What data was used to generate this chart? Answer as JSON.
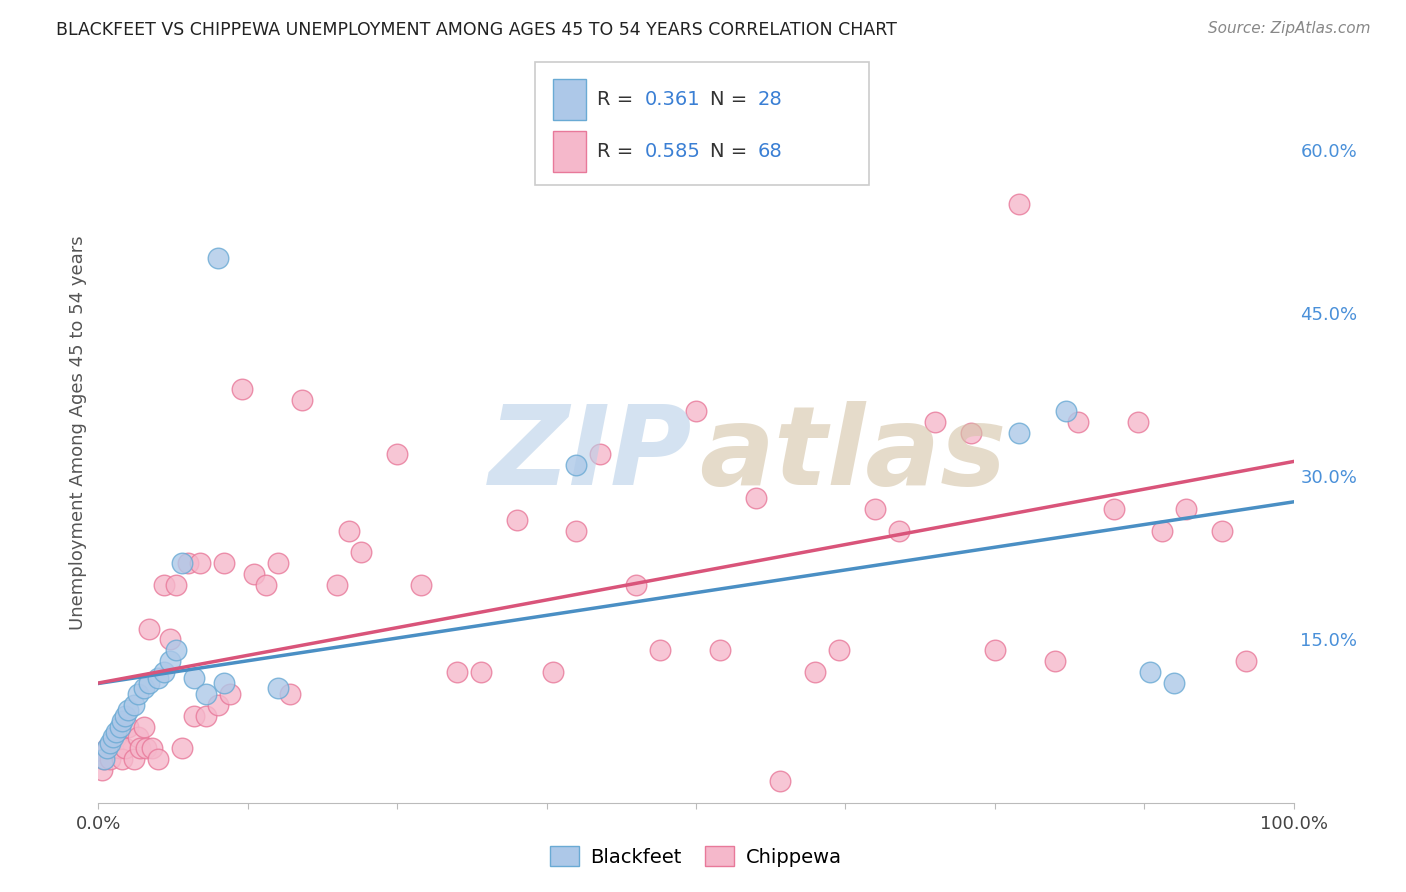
{
  "title": "BLACKFEET VS CHIPPEWA UNEMPLOYMENT AMONG AGES 45 TO 54 YEARS CORRELATION CHART",
  "source": "Source: ZipAtlas.com",
  "ylabel": "Unemployment Among Ages 45 to 54 years",
  "blackfeet_R": "0.361",
  "blackfeet_N": "28",
  "chippewa_R": "0.585",
  "chippewa_N": "68",
  "blackfeet_fill": "#adc8e8",
  "chippewa_fill": "#f5b8cb",
  "blackfeet_edge": "#6aaad4",
  "chippewa_edge": "#e8799a",
  "blackfeet_line": "#4a8fc4",
  "chippewa_line": "#d9547a",
  "xlim": [
    0.0,
    1.0
  ],
  "ylim": [
    0.0,
    0.68
  ],
  "right_yticks": [
    0.15,
    0.3,
    0.45,
    0.6
  ],
  "right_yticklabels": [
    "15.0%",
    "30.0%",
    "45.0%",
    "60.0%"
  ],
  "blackfeet_x": [
    0.005,
    0.007,
    0.01,
    0.012,
    0.015,
    0.018,
    0.02,
    0.022,
    0.025,
    0.03,
    0.033,
    0.038,
    0.042,
    0.05,
    0.055,
    0.06,
    0.065,
    0.07,
    0.08,
    0.09,
    0.1,
    0.105,
    0.15,
    0.4,
    0.77,
    0.81,
    0.88,
    0.9
  ],
  "blackfeet_y": [
    0.04,
    0.05,
    0.055,
    0.06,
    0.065,
    0.07,
    0.075,
    0.08,
    0.085,
    0.09,
    0.1,
    0.105,
    0.11,
    0.115,
    0.12,
    0.13,
    0.14,
    0.22,
    0.115,
    0.1,
    0.5,
    0.11,
    0.105,
    0.31,
    0.34,
    0.36,
    0.12,
    0.11
  ],
  "chippewa_x": [
    0.003,
    0.005,
    0.007,
    0.01,
    0.012,
    0.015,
    0.018,
    0.02,
    0.022,
    0.025,
    0.03,
    0.033,
    0.035,
    0.038,
    0.04,
    0.042,
    0.045,
    0.05,
    0.055,
    0.06,
    0.065,
    0.07,
    0.075,
    0.08,
    0.085,
    0.09,
    0.1,
    0.105,
    0.11,
    0.12,
    0.13,
    0.14,
    0.15,
    0.16,
    0.17,
    0.2,
    0.21,
    0.22,
    0.25,
    0.27,
    0.3,
    0.32,
    0.35,
    0.38,
    0.4,
    0.42,
    0.45,
    0.47,
    0.5,
    0.52,
    0.55,
    0.57,
    0.6,
    0.62,
    0.65,
    0.67,
    0.7,
    0.73,
    0.75,
    0.77,
    0.8,
    0.82,
    0.85,
    0.87,
    0.89,
    0.91,
    0.94,
    0.96
  ],
  "chippewa_y": [
    0.03,
    0.04,
    0.05,
    0.04,
    0.05,
    0.06,
    0.05,
    0.04,
    0.05,
    0.07,
    0.04,
    0.06,
    0.05,
    0.07,
    0.05,
    0.16,
    0.05,
    0.04,
    0.2,
    0.15,
    0.2,
    0.05,
    0.22,
    0.08,
    0.22,
    0.08,
    0.09,
    0.22,
    0.1,
    0.38,
    0.21,
    0.2,
    0.22,
    0.1,
    0.37,
    0.2,
    0.25,
    0.23,
    0.32,
    0.2,
    0.12,
    0.12,
    0.26,
    0.12,
    0.25,
    0.32,
    0.2,
    0.14,
    0.36,
    0.14,
    0.28,
    0.02,
    0.12,
    0.14,
    0.27,
    0.25,
    0.35,
    0.34,
    0.14,
    0.55,
    0.13,
    0.35,
    0.27,
    0.35,
    0.25,
    0.27,
    0.25,
    0.13
  ]
}
